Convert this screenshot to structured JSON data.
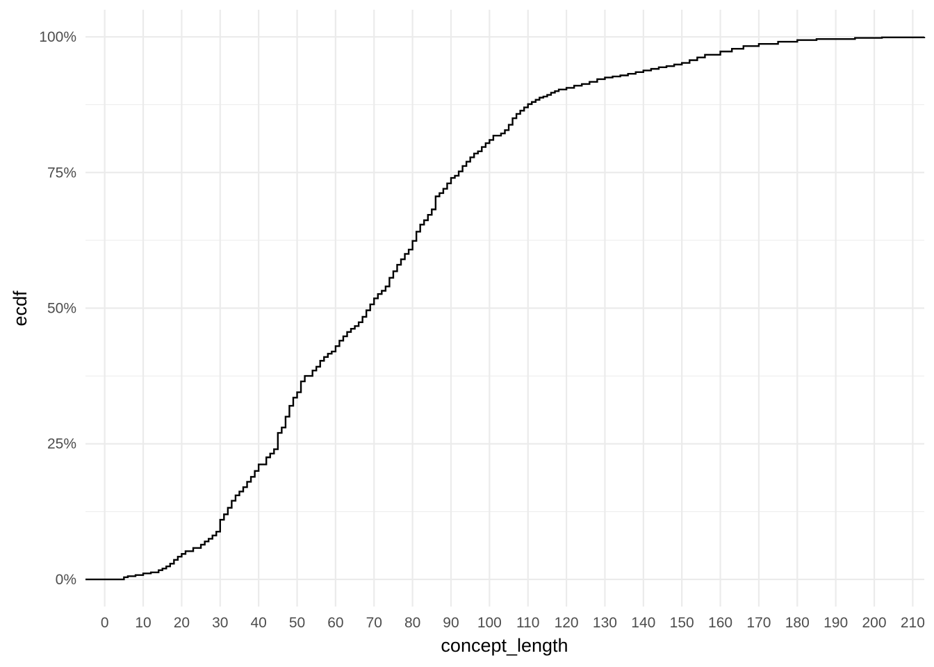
{
  "chart_data": {
    "type": "line",
    "step": true,
    "xlabel": "concept_length",
    "ylabel": "ecdf",
    "xlim": [
      -5,
      213
    ],
    "ylim": [
      -0.05,
      1.05
    ],
    "x_ticks": [
      0,
      10,
      20,
      30,
      40,
      50,
      60,
      70,
      80,
      90,
      100,
      110,
      120,
      130,
      140,
      150,
      160,
      170,
      180,
      190,
      200,
      210
    ],
    "y_ticks": [
      0,
      0.25,
      0.5,
      0.75,
      1.0
    ],
    "y_tick_labels": [
      "0%",
      "25%",
      "50%",
      "75%",
      "100%"
    ],
    "grid": true,
    "line_color": "#000000",
    "grid_color": "#ebebeb",
    "x": [
      -5,
      5,
      6,
      8,
      10,
      12,
      14,
      15,
      16,
      17,
      18,
      19,
      20,
      21,
      23,
      25,
      26,
      27,
      28,
      29,
      30,
      31,
      32,
      33,
      34,
      35,
      36,
      37,
      38,
      39,
      40,
      42,
      43,
      44,
      45,
      46,
      47,
      48,
      49,
      50,
      51,
      52,
      54,
      55,
      56,
      57,
      58,
      59,
      60,
      61,
      62,
      63,
      64,
      65,
      66,
      67,
      68,
      69,
      70,
      71,
      72,
      73,
      74,
      75,
      76,
      77,
      78,
      79,
      80,
      81,
      82,
      83,
      84,
      85,
      86,
      87,
      88,
      89,
      90,
      91,
      92,
      93,
      94,
      95,
      96,
      97,
      98,
      99,
      100,
      101,
      103,
      104,
      105,
      106,
      107,
      108,
      109,
      110,
      111,
      112,
      113,
      114,
      115,
      116,
      117,
      118,
      120,
      122,
      124,
      126,
      128,
      130,
      132,
      134,
      136,
      138,
      140,
      142,
      144,
      146,
      148,
      150,
      152,
      154,
      156,
      160,
      163,
      166,
      170,
      175,
      180,
      185,
      195,
      202,
      213
    ],
    "y": [
      0,
      0.004,
      0.006,
      0.008,
      0.011,
      0.013,
      0.017,
      0.02,
      0.024,
      0.029,
      0.036,
      0.042,
      0.047,
      0.052,
      0.058,
      0.064,
      0.07,
      0.075,
      0.081,
      0.088,
      0.11,
      0.12,
      0.132,
      0.145,
      0.155,
      0.162,
      0.17,
      0.18,
      0.189,
      0.2,
      0.212,
      0.225,
      0.232,
      0.24,
      0.27,
      0.28,
      0.3,
      0.32,
      0.335,
      0.345,
      0.365,
      0.375,
      0.385,
      0.392,
      0.403,
      0.41,
      0.416,
      0.42,
      0.43,
      0.44,
      0.448,
      0.456,
      0.462,
      0.467,
      0.474,
      0.484,
      0.496,
      0.507,
      0.518,
      0.526,
      0.532,
      0.54,
      0.556,
      0.568,
      0.58,
      0.59,
      0.6,
      0.608,
      0.624,
      0.641,
      0.654,
      0.662,
      0.672,
      0.682,
      0.706,
      0.712,
      0.72,
      0.73,
      0.74,
      0.744,
      0.752,
      0.762,
      0.77,
      0.778,
      0.785,
      0.789,
      0.797,
      0.804,
      0.81,
      0.818,
      0.822,
      0.828,
      0.838,
      0.85,
      0.858,
      0.864,
      0.87,
      0.876,
      0.88,
      0.884,
      0.888,
      0.89,
      0.893,
      0.897,
      0.9,
      0.903,
      0.906,
      0.91,
      0.913,
      0.917,
      0.922,
      0.925,
      0.927,
      0.929,
      0.932,
      0.935,
      0.938,
      0.941,
      0.944,
      0.946,
      0.949,
      0.952,
      0.957,
      0.962,
      0.967,
      0.973,
      0.978,
      0.983,
      0.987,
      0.991,
      0.994,
      0.996,
      0.998,
      0.999,
      1.0
    ]
  }
}
